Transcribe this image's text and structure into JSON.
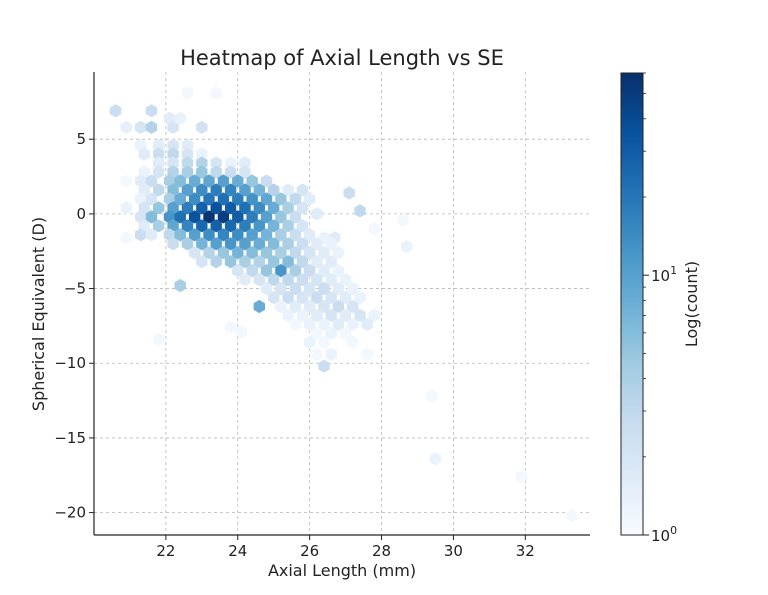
{
  "chart_data": {
    "type": "heatmap",
    "subtype": "hexbin",
    "title": "Heatmap of Axial Length vs SE",
    "xlabel": "Axial Length (mm)",
    "ylabel": "Spherical Equivalent (D)",
    "xlim": [
      20.0,
      33.8
    ],
    "ylim": [
      -21.5,
      9.5
    ],
    "xticks": [
      22,
      24,
      26,
      28,
      30,
      32
    ],
    "yticks": [
      5,
      0,
      -5,
      -10,
      -15,
      -20
    ],
    "grid": true,
    "colorbar": {
      "label": "Log(count)",
      "scale": "log",
      "min": 1,
      "max": 60,
      "colormap": "Blues",
      "ticks": [
        {
          "value": 1,
          "base": "10",
          "exp": "0"
        },
        {
          "value": 10,
          "base": "10",
          "exp": "1"
        }
      ]
    },
    "bins": [
      {
        "x": 20.6,
        "y": 6.9,
        "count": 2.5
      },
      {
        "x": 21.6,
        "y": 6.9,
        "count": 2.5
      },
      {
        "x": 22.6,
        "y": 8.1,
        "count": 1.1
      },
      {
        "x": 23.4,
        "y": 8.1,
        "count": 1.1
      },
      {
        "x": 20.9,
        "y": 5.8,
        "count": 1.4
      },
      {
        "x": 21.3,
        "y": 5.8,
        "count": 2
      },
      {
        "x": 21.6,
        "y": 5.8,
        "count": 3.5
      },
      {
        "x": 22.1,
        "y": 6.4,
        "count": 1.6
      },
      {
        "x": 22.2,
        "y": 5.8,
        "count": 2
      },
      {
        "x": 22.4,
        "y": 6.4,
        "count": 1.3
      },
      {
        "x": 23.0,
        "y": 5.8,
        "count": 2.2
      },
      {
        "x": 21.3,
        "y": 4.6,
        "count": 1.3
      },
      {
        "x": 21.8,
        "y": 4.6,
        "count": 1.6
      },
      {
        "x": 22.2,
        "y": 4.6,
        "count": 2
      },
      {
        "x": 22.6,
        "y": 4.6,
        "count": 1.6
      },
      {
        "x": 21.4,
        "y": 4.0,
        "count": 1.6
      },
      {
        "x": 21.8,
        "y": 4.0,
        "count": 2.5
      },
      {
        "x": 22.2,
        "y": 4.0,
        "count": 3
      },
      {
        "x": 22.6,
        "y": 4.0,
        "count": 2
      },
      {
        "x": 23.0,
        "y": 4.0,
        "count": 1.3
      },
      {
        "x": 21.8,
        "y": 3.4,
        "count": 1.6
      },
      {
        "x": 22.2,
        "y": 3.4,
        "count": 2
      },
      {
        "x": 22.6,
        "y": 3.4,
        "count": 3
      },
      {
        "x": 23.0,
        "y": 3.4,
        "count": 3.5
      },
      {
        "x": 23.4,
        "y": 3.4,
        "count": 2
      },
      {
        "x": 23.8,
        "y": 3.4,
        "count": 1.3
      },
      {
        "x": 24.2,
        "y": 3.4,
        "count": 1.6
      },
      {
        "x": 21.4,
        "y": 2.8,
        "count": 1.3
      },
      {
        "x": 21.8,
        "y": 2.8,
        "count": 2
      },
      {
        "x": 22.2,
        "y": 2.8,
        "count": 3.5
      },
      {
        "x": 22.6,
        "y": 2.8,
        "count": 4
      },
      {
        "x": 23.0,
        "y": 2.8,
        "count": 5
      },
      {
        "x": 23.4,
        "y": 2.8,
        "count": 3
      },
      {
        "x": 23.8,
        "y": 2.8,
        "count": 2.5
      },
      {
        "x": 24.2,
        "y": 2.8,
        "count": 2
      },
      {
        "x": 20.9,
        "y": 2.2,
        "count": 1.1
      },
      {
        "x": 21.3,
        "y": 2.2,
        "count": 1.6
      },
      {
        "x": 21.6,
        "y": 2.2,
        "count": 2.5
      },
      {
        "x": 22.1,
        "y": 2.2,
        "count": 4
      },
      {
        "x": 22.4,
        "y": 2.2,
        "count": 6
      },
      {
        "x": 22.8,
        "y": 2.2,
        "count": 8
      },
      {
        "x": 23.2,
        "y": 2.2,
        "count": 9
      },
      {
        "x": 23.6,
        "y": 2.2,
        "count": 10
      },
      {
        "x": 24.0,
        "y": 2.2,
        "count": 8
      },
      {
        "x": 24.4,
        "y": 2.2,
        "count": 5
      },
      {
        "x": 24.8,
        "y": 2.2,
        "count": 2.5
      },
      {
        "x": 21.4,
        "y": 1.6,
        "count": 1.6
      },
      {
        "x": 21.8,
        "y": 1.6,
        "count": 3
      },
      {
        "x": 22.2,
        "y": 1.6,
        "count": 6
      },
      {
        "x": 22.6,
        "y": 1.6,
        "count": 10
      },
      {
        "x": 23.0,
        "y": 1.6,
        "count": 14
      },
      {
        "x": 23.4,
        "y": 1.6,
        "count": 18
      },
      {
        "x": 23.8,
        "y": 1.6,
        "count": 16
      },
      {
        "x": 24.2,
        "y": 1.6,
        "count": 10
      },
      {
        "x": 24.6,
        "y": 1.6,
        "count": 7
      },
      {
        "x": 25.0,
        "y": 1.6,
        "count": 3.5
      },
      {
        "x": 25.4,
        "y": 1.6,
        "count": 1.6
      },
      {
        "x": 25.8,
        "y": 1.6,
        "count": 2
      },
      {
        "x": 27.1,
        "y": 1.4,
        "count": 2.5
      },
      {
        "x": 21.3,
        "y": 1.0,
        "count": 1.3
      },
      {
        "x": 21.6,
        "y": 1.0,
        "count": 2
      },
      {
        "x": 22.1,
        "y": 1.0,
        "count": 4
      },
      {
        "x": 22.4,
        "y": 1.0,
        "count": 8
      },
      {
        "x": 22.8,
        "y": 1.0,
        "count": 14
      },
      {
        "x": 23.2,
        "y": 1.0,
        "count": 20
      },
      {
        "x": 23.6,
        "y": 1.0,
        "count": 22
      },
      {
        "x": 24.0,
        "y": 1.0,
        "count": 18
      },
      {
        "x": 24.4,
        "y": 1.0,
        "count": 13
      },
      {
        "x": 24.8,
        "y": 1.0,
        "count": 9
      },
      {
        "x": 25.2,
        "y": 1.0,
        "count": 5
      },
      {
        "x": 25.6,
        "y": 1.0,
        "count": 3
      },
      {
        "x": 26.0,
        "y": 1.0,
        "count": 1.6
      },
      {
        "x": 20.9,
        "y": 0.4,
        "count": 1.3
      },
      {
        "x": 21.4,
        "y": 0.4,
        "count": 2
      },
      {
        "x": 21.8,
        "y": 0.4,
        "count": 5
      },
      {
        "x": 22.2,
        "y": 0.4,
        "count": 10
      },
      {
        "x": 22.6,
        "y": 0.4,
        "count": 18
      },
      {
        "x": 23.0,
        "y": 0.4,
        "count": 28
      },
      {
        "x": 23.4,
        "y": 0.4,
        "count": 35
      },
      {
        "x": 23.8,
        "y": 0.4,
        "count": 30
      },
      {
        "x": 24.2,
        "y": 0.4,
        "count": 22
      },
      {
        "x": 24.6,
        "y": 0.4,
        "count": 14
      },
      {
        "x": 25.0,
        "y": 0.4,
        "count": 8
      },
      {
        "x": 25.4,
        "y": 0.4,
        "count": 4
      },
      {
        "x": 25.8,
        "y": 0.4,
        "count": 2
      },
      {
        "x": 21.3,
        "y": -0.2,
        "count": 2
      },
      {
        "x": 21.6,
        "y": -0.2,
        "count": 6
      },
      {
        "x": 22.1,
        "y": -0.2,
        "count": 12
      },
      {
        "x": 22.4,
        "y": -0.2,
        "count": 22
      },
      {
        "x": 22.8,
        "y": -0.2,
        "count": 35
      },
      {
        "x": 23.2,
        "y": -0.2,
        "count": 55
      },
      {
        "x": 23.6,
        "y": -0.2,
        "count": 48
      },
      {
        "x": 24.0,
        "y": -0.2,
        "count": 30
      },
      {
        "x": 24.4,
        "y": -0.2,
        "count": 18
      },
      {
        "x": 24.8,
        "y": -0.2,
        "count": 10
      },
      {
        "x": 25.2,
        "y": -0.2,
        "count": 5
      },
      {
        "x": 25.6,
        "y": -0.2,
        "count": 2.5
      },
      {
        "x": 26.2,
        "y": 0.0,
        "count": 1.6
      },
      {
        "x": 27.4,
        "y": 0.2,
        "count": 3
      },
      {
        "x": 28.6,
        "y": -0.4,
        "count": 1.1
      },
      {
        "x": 21.4,
        "y": -0.8,
        "count": 1.6
      },
      {
        "x": 21.8,
        "y": -0.8,
        "count": 4
      },
      {
        "x": 22.2,
        "y": -0.8,
        "count": 9
      },
      {
        "x": 22.6,
        "y": -0.8,
        "count": 16
      },
      {
        "x": 23.0,
        "y": -0.8,
        "count": 25
      },
      {
        "x": 23.4,
        "y": -0.8,
        "count": 28
      },
      {
        "x": 23.8,
        "y": -0.8,
        "count": 25
      },
      {
        "x": 24.2,
        "y": -0.8,
        "count": 18
      },
      {
        "x": 24.6,
        "y": -0.8,
        "count": 12
      },
      {
        "x": 25.0,
        "y": -0.8,
        "count": 7
      },
      {
        "x": 25.4,
        "y": -0.8,
        "count": 4
      },
      {
        "x": 25.8,
        "y": -0.8,
        "count": 2
      },
      {
        "x": 21.3,
        "y": -1.4,
        "count": 2.5
      },
      {
        "x": 21.6,
        "y": -1.4,
        "count": 1.6
      },
      {
        "x": 22.1,
        "y": -1.4,
        "count": 3
      },
      {
        "x": 22.4,
        "y": -1.4,
        "count": 6
      },
      {
        "x": 22.8,
        "y": -1.4,
        "count": 10
      },
      {
        "x": 23.2,
        "y": -1.4,
        "count": 14
      },
      {
        "x": 23.6,
        "y": -1.4,
        "count": 16
      },
      {
        "x": 24.0,
        "y": -1.4,
        "count": 14
      },
      {
        "x": 24.4,
        "y": -1.4,
        "count": 10
      },
      {
        "x": 24.8,
        "y": -1.4,
        "count": 7
      },
      {
        "x": 25.2,
        "y": -1.4,
        "count": 4
      },
      {
        "x": 25.6,
        "y": -1.4,
        "count": 2.5
      },
      {
        "x": 26.0,
        "y": -1.4,
        "count": 1.6
      },
      {
        "x": 26.4,
        "y": -1.6,
        "count": 1.3
      },
      {
        "x": 26.7,
        "y": -1.6,
        "count": 1.6
      },
      {
        "x": 27.8,
        "y": -1.0,
        "count": 1.1
      },
      {
        "x": 22.2,
        "y": -2.0,
        "count": 2.5
      },
      {
        "x": 22.6,
        "y": -2.0,
        "count": 4
      },
      {
        "x": 23.0,
        "y": -2.0,
        "count": 7
      },
      {
        "x": 23.4,
        "y": -2.0,
        "count": 10
      },
      {
        "x": 23.8,
        "y": -2.0,
        "count": 12
      },
      {
        "x": 24.2,
        "y": -2.0,
        "count": 10
      },
      {
        "x": 24.6,
        "y": -2.0,
        "count": 8
      },
      {
        "x": 25.0,
        "y": -2.0,
        "count": 6
      },
      {
        "x": 25.4,
        "y": -2.0,
        "count": 4
      },
      {
        "x": 25.8,
        "y": -2.0,
        "count": 2.5
      },
      {
        "x": 26.2,
        "y": -2.0,
        "count": 1.6
      },
      {
        "x": 26.6,
        "y": -2.0,
        "count": 1.3
      },
      {
        "x": 20.9,
        "y": -1.6,
        "count": 1.1
      },
      {
        "x": 28.7,
        "y": -2.2,
        "count": 1.3
      },
      {
        "x": 22.8,
        "y": -2.6,
        "count": 2
      },
      {
        "x": 23.2,
        "y": -2.6,
        "count": 3.5
      },
      {
        "x": 23.6,
        "y": -2.6,
        "count": 5
      },
      {
        "x": 24.0,
        "y": -2.6,
        "count": 7
      },
      {
        "x": 24.4,
        "y": -2.6,
        "count": 6
      },
      {
        "x": 24.8,
        "y": -2.6,
        "count": 5
      },
      {
        "x": 25.2,
        "y": -2.6,
        "count": 4
      },
      {
        "x": 25.6,
        "y": -2.6,
        "count": 3
      },
      {
        "x": 26.0,
        "y": -2.6,
        "count": 2
      },
      {
        "x": 26.4,
        "y": -2.6,
        "count": 1.6
      },
      {
        "x": 26.8,
        "y": -2.6,
        "count": 1.3
      },
      {
        "x": 23.0,
        "y": -3.2,
        "count": 2
      },
      {
        "x": 23.4,
        "y": -3.2,
        "count": 3.5
      },
      {
        "x": 23.8,
        "y": -3.2,
        "count": 5
      },
      {
        "x": 24.2,
        "y": -3.2,
        "count": 4
      },
      {
        "x": 24.6,
        "y": -3.2,
        "count": 3.5
      },
      {
        "x": 25.0,
        "y": -3.2,
        "count": 5
      },
      {
        "x": 25.4,
        "y": -3.2,
        "count": 6
      },
      {
        "x": 25.8,
        "y": -3.2,
        "count": 3
      },
      {
        "x": 26.2,
        "y": -3.2,
        "count": 1.6
      },
      {
        "x": 26.6,
        "y": -3.2,
        "count": 1.6
      },
      {
        "x": 24.0,
        "y": -3.8,
        "count": 2
      },
      {
        "x": 24.4,
        "y": -3.8,
        "count": 3
      },
      {
        "x": 24.8,
        "y": -3.8,
        "count": 5
      },
      {
        "x": 25.2,
        "y": -3.8,
        "count": 12
      },
      {
        "x": 25.6,
        "y": -3.8,
        "count": 4
      },
      {
        "x": 26.0,
        "y": -3.8,
        "count": 2.5
      },
      {
        "x": 26.4,
        "y": -3.8,
        "count": 1.6
      },
      {
        "x": 26.8,
        "y": -3.8,
        "count": 1.3
      },
      {
        "x": 24.2,
        "y": -4.4,
        "count": 1.6
      },
      {
        "x": 24.6,
        "y": -4.4,
        "count": 2
      },
      {
        "x": 25.0,
        "y": -4.4,
        "count": 3
      },
      {
        "x": 25.4,
        "y": -4.4,
        "count": 3
      },
      {
        "x": 25.8,
        "y": -4.4,
        "count": 2.5
      },
      {
        "x": 26.2,
        "y": -4.4,
        "count": 2
      },
      {
        "x": 26.6,
        "y": -4.4,
        "count": 1.6
      },
      {
        "x": 27.0,
        "y": -4.4,
        "count": 1.3
      },
      {
        "x": 22.4,
        "y": -4.8,
        "count": 4
      },
      {
        "x": 24.8,
        "y": -5.0,
        "count": 1.6
      },
      {
        "x": 25.2,
        "y": -5.0,
        "count": 2
      },
      {
        "x": 25.6,
        "y": -5.0,
        "count": 2.5
      },
      {
        "x": 26.0,
        "y": -5.0,
        "count": 2
      },
      {
        "x": 26.4,
        "y": -5.0,
        "count": 2.5
      },
      {
        "x": 26.8,
        "y": -5.0,
        "count": 1.6
      },
      {
        "x": 27.2,
        "y": -5.0,
        "count": 1.3
      },
      {
        "x": 25.0,
        "y": -5.6,
        "count": 2
      },
      {
        "x": 25.4,
        "y": -5.6,
        "count": 2.5
      },
      {
        "x": 25.8,
        "y": -5.6,
        "count": 2
      },
      {
        "x": 26.2,
        "y": -5.6,
        "count": 2.5
      },
      {
        "x": 26.6,
        "y": -5.6,
        "count": 2
      },
      {
        "x": 27.0,
        "y": -5.6,
        "count": 1.6
      },
      {
        "x": 27.4,
        "y": -5.6,
        "count": 1.3
      },
      {
        "x": 24.6,
        "y": -6.2,
        "count": 8
      },
      {
        "x": 25.2,
        "y": -6.2,
        "count": 1.3
      },
      {
        "x": 25.6,
        "y": -6.2,
        "count": 1.6
      },
      {
        "x": 26.0,
        "y": -6.2,
        "count": 1.6
      },
      {
        "x": 26.4,
        "y": -6.2,
        "count": 2
      },
      {
        "x": 26.8,
        "y": -6.2,
        "count": 2.5
      },
      {
        "x": 27.2,
        "y": -6.2,
        "count": 2
      },
      {
        "x": 25.4,
        "y": -6.8,
        "count": 1.3
      },
      {
        "x": 25.8,
        "y": -6.8,
        "count": 1.3
      },
      {
        "x": 26.2,
        "y": -6.8,
        "count": 1.6
      },
      {
        "x": 26.6,
        "y": -6.8,
        "count": 2
      },
      {
        "x": 27.0,
        "y": -6.8,
        "count": 1.6
      },
      {
        "x": 27.4,
        "y": -6.8,
        "count": 2
      },
      {
        "x": 27.8,
        "y": -6.8,
        "count": 1.3
      },
      {
        "x": 25.6,
        "y": -7.4,
        "count": 1.1
      },
      {
        "x": 26.0,
        "y": -7.4,
        "count": 1.3
      },
      {
        "x": 26.4,
        "y": -7.4,
        "count": 1.3
      },
      {
        "x": 26.8,
        "y": -7.4,
        "count": 1.6
      },
      {
        "x": 27.2,
        "y": -7.4,
        "count": 1.3
      },
      {
        "x": 27.6,
        "y": -7.4,
        "count": 1.6
      },
      {
        "x": 23.8,
        "y": -7.6,
        "count": 1.1
      },
      {
        "x": 24.1,
        "y": -7.9,
        "count": 1.1
      },
      {
        "x": 21.8,
        "y": -8.4,
        "count": 1.1
      },
      {
        "x": 26.2,
        "y": -8.0,
        "count": 1.1
      },
      {
        "x": 26.6,
        "y": -8.0,
        "count": 1.3
      },
      {
        "x": 27.0,
        "y": -8.0,
        "count": 1.1
      },
      {
        "x": 26.0,
        "y": -8.6,
        "count": 1.3
      },
      {
        "x": 26.4,
        "y": -8.6,
        "count": 1.1
      },
      {
        "x": 27.2,
        "y": -8.6,
        "count": 1.1
      },
      {
        "x": 26.2,
        "y": -9.4,
        "count": 1.1
      },
      {
        "x": 26.6,
        "y": -9.4,
        "count": 1.3
      },
      {
        "x": 27.6,
        "y": -9.4,
        "count": 1.1
      },
      {
        "x": 26.4,
        "y": -10.2,
        "count": 2.5
      },
      {
        "x": 29.4,
        "y": -12.2,
        "count": 1.1
      },
      {
        "x": 29.5,
        "y": -16.4,
        "count": 1.3
      },
      {
        "x": 31.9,
        "y": -17.6,
        "count": 1.1
      },
      {
        "x": 33.3,
        "y": -20.2,
        "count": 1.1
      }
    ]
  }
}
